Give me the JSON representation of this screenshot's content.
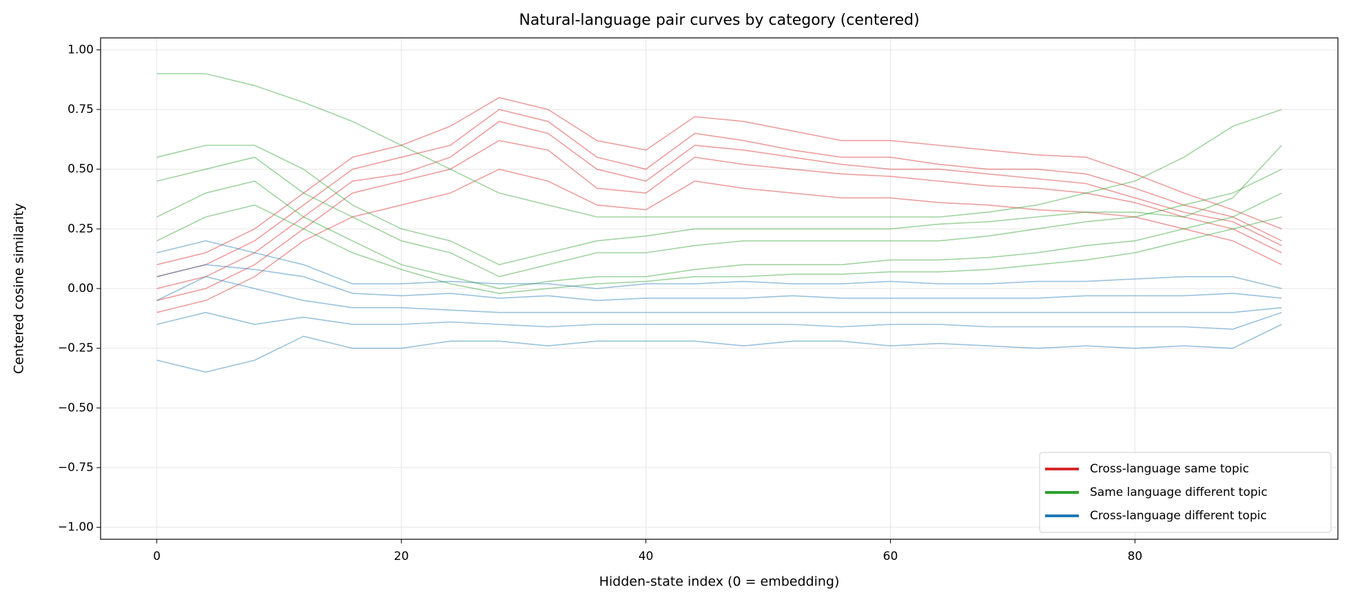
{
  "chart_data": {
    "type": "line",
    "title": "Natural-language pair curves by category (centered)",
    "x_label": "Hidden-state index (0 = embedding)",
    "y_label": "Centered cosine similarity",
    "x": [
      0,
      4,
      8,
      12,
      16,
      20,
      24,
      28,
      32,
      36,
      40,
      44,
      48,
      52,
      56,
      60,
      64,
      68,
      72,
      76,
      80,
      84,
      88,
      92
    ],
    "series": [
      {
        "name": "Cross-language same topic",
        "color": "#d62728",
        "values": [
          [
            0.05,
            0.1,
            0.2,
            0.35,
            0.5,
            0.55,
            0.6,
            0.75,
            0.7,
            0.55,
            0.5,
            0.65,
            0.62,
            0.58,
            0.55,
            0.55,
            0.52,
            0.5,
            0.5,
            0.48,
            0.42,
            0.35,
            0.3,
            0.2
          ],
          [
            -0.05,
            0.0,
            0.1,
            0.25,
            0.4,
            0.45,
            0.5,
            0.62,
            0.58,
            0.42,
            0.4,
            0.55,
            0.52,
            0.5,
            0.48,
            0.47,
            0.45,
            0.43,
            0.42,
            0.4,
            0.36,
            0.3,
            0.25,
            0.15
          ],
          [
            0.0,
            0.05,
            0.15,
            0.3,
            0.45,
            0.48,
            0.55,
            0.7,
            0.65,
            0.5,
            0.45,
            0.6,
            0.58,
            0.55,
            0.52,
            0.5,
            0.5,
            0.48,
            0.46,
            0.44,
            0.38,
            0.32,
            0.28,
            0.18
          ],
          [
            -0.1,
            -0.05,
            0.05,
            0.2,
            0.3,
            0.35,
            0.4,
            0.5,
            0.45,
            0.35,
            0.33,
            0.45,
            0.42,
            0.4,
            0.38,
            0.38,
            0.36,
            0.35,
            0.33,
            0.32,
            0.3,
            0.25,
            0.2,
            0.1
          ],
          [
            0.1,
            0.15,
            0.25,
            0.4,
            0.55,
            0.6,
            0.68,
            0.8,
            0.75,
            0.62,
            0.58,
            0.72,
            0.7,
            0.66,
            0.62,
            0.62,
            0.6,
            0.58,
            0.56,
            0.55,
            0.48,
            0.4,
            0.33,
            0.25
          ]
        ]
      },
      {
        "name": "Same language different topic",
        "color": "#2ca02c",
        "values": [
          [
            0.9,
            0.9,
            0.85,
            0.78,
            0.7,
            0.6,
            0.5,
            0.4,
            0.35,
            0.3,
            0.3,
            0.3,
            0.3,
            0.3,
            0.3,
            0.3,
            0.3,
            0.32,
            0.35,
            0.4,
            0.45,
            0.55,
            0.68,
            0.75
          ],
          [
            0.45,
            0.5,
            0.55,
            0.4,
            0.3,
            0.2,
            0.15,
            0.05,
            0.1,
            0.15,
            0.15,
            0.18,
            0.2,
            0.2,
            0.2,
            0.2,
            0.2,
            0.22,
            0.25,
            0.28,
            0.3,
            0.35,
            0.4,
            0.5
          ],
          [
            0.3,
            0.4,
            0.45,
            0.3,
            0.2,
            0.1,
            0.05,
            0.0,
            0.03,
            0.05,
            0.05,
            0.08,
            0.1,
            0.1,
            0.1,
            0.12,
            0.12,
            0.13,
            0.15,
            0.18,
            0.2,
            0.25,
            0.3,
            0.4
          ],
          [
            0.55,
            0.6,
            0.6,
            0.5,
            0.35,
            0.25,
            0.2,
            0.1,
            0.15,
            0.2,
            0.22,
            0.25,
            0.25,
            0.25,
            0.25,
            0.25,
            0.27,
            0.28,
            0.3,
            0.32,
            0.32,
            0.3,
            0.38,
            0.6
          ],
          [
            0.2,
            0.3,
            0.35,
            0.25,
            0.15,
            0.08,
            0.02,
            -0.02,
            0.0,
            0.02,
            0.03,
            0.05,
            0.05,
            0.06,
            0.06,
            0.07,
            0.07,
            0.08,
            0.1,
            0.12,
            0.15,
            0.2,
            0.25,
            0.3
          ]
        ]
      },
      {
        "name": "Cross-language different topic",
        "color": "#1f77b4",
        "values": [
          [
            -0.05,
            0.05,
            0.0,
            -0.05,
            -0.08,
            -0.08,
            -0.09,
            -0.1,
            -0.1,
            -0.1,
            -0.1,
            -0.1,
            -0.1,
            -0.1,
            -0.1,
            -0.1,
            -0.1,
            -0.1,
            -0.1,
            -0.1,
            -0.1,
            -0.1,
            -0.1,
            -0.08
          ],
          [
            -0.3,
            -0.35,
            -0.3,
            -0.2,
            -0.25,
            -0.25,
            -0.22,
            -0.22,
            -0.24,
            -0.22,
            -0.22,
            -0.22,
            -0.24,
            -0.22,
            -0.22,
            -0.24,
            -0.23,
            -0.24,
            -0.25,
            -0.24,
            -0.25,
            -0.24,
            -0.25,
            -0.15
          ],
          [
            0.15,
            0.2,
            0.15,
            0.1,
            0.02,
            0.02,
            0.03,
            0.02,
            0.02,
            0.0,
            0.02,
            0.02,
            0.03,
            0.02,
            0.02,
            0.03,
            0.02,
            0.02,
            0.03,
            0.03,
            0.04,
            0.05,
            0.05,
            0.0
          ],
          [
            -0.15,
            -0.1,
            -0.15,
            -0.12,
            -0.15,
            -0.15,
            -0.14,
            -0.15,
            -0.16,
            -0.15,
            -0.15,
            -0.15,
            -0.15,
            -0.15,
            -0.16,
            -0.15,
            -0.15,
            -0.16,
            -0.16,
            -0.16,
            -0.16,
            -0.16,
            -0.17,
            -0.1
          ],
          [
            0.05,
            0.1,
            0.08,
            0.05,
            -0.02,
            -0.03,
            -0.02,
            -0.04,
            -0.03,
            -0.05,
            -0.04,
            -0.04,
            -0.04,
            -0.03,
            -0.04,
            -0.04,
            -0.04,
            -0.04,
            -0.04,
            -0.03,
            -0.03,
            -0.03,
            -0.02,
            -0.04
          ]
        ]
      }
    ],
    "xlim": [
      -4.6,
      96.6
    ],
    "ylim": [
      -1.05,
      1.05
    ],
    "xticks": [
      0,
      20,
      40,
      60,
      80
    ],
    "yticks": [
      {
        "value": 1,
        "label": "1.00"
      },
      {
        "value": 0.75,
        "label": "0.75"
      },
      {
        "value": 0.5,
        "label": "0.50"
      },
      {
        "value": 0.25,
        "label": "0.25"
      },
      {
        "value": 0,
        "label": "0.00"
      },
      {
        "value": -0.25,
        "label": "−0.25"
      },
      {
        "value": -0.5,
        "label": "−0.50"
      },
      {
        "value": -0.75,
        "label": "−0.75"
      },
      {
        "value": -1,
        "label": "−1.00"
      }
    ],
    "grid": true,
    "legend_position": "lower right"
  }
}
